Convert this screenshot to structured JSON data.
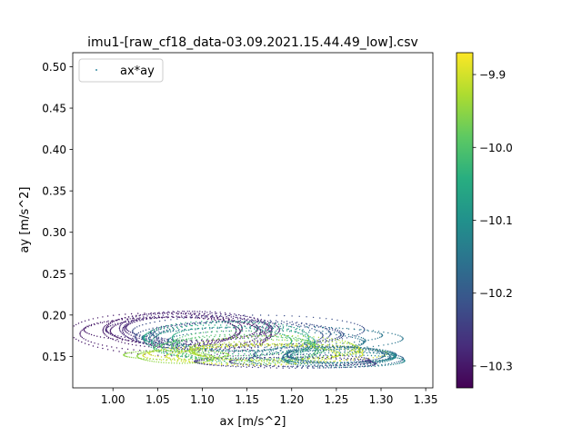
{
  "chart_data": {
    "type": "scatter",
    "title": "imu1-[raw_cf18_data-03.09.2021.15.44.49_low].csv",
    "xlabel": "ax [m/s^2]",
    "ylabel": "ay [m/s^2]",
    "xlim": [
      0.955,
      1.358
    ],
    "ylim": [
      0.112,
      0.517
    ],
    "xticks": [
      "1.00",
      "1.05",
      "1.10",
      "1.15",
      "1.20",
      "1.25",
      "1.30",
      "1.35"
    ],
    "yticks": [
      "0.15",
      "0.20",
      "0.25",
      "0.30",
      "0.35",
      "0.40",
      "0.45",
      "0.50"
    ],
    "legend": {
      "label": "ax*ay",
      "placement": "top-left"
    },
    "colorbar": {
      "colormap": "viridis",
      "range": [
        -10.33,
        -9.87
      ],
      "ticks": [
        "−9.9",
        "−10.0",
        "−10.1",
        "−10.2",
        "−10.3"
      ]
    },
    "grid": false,
    "series": [
      {
        "name": "ax*ay",
        "marker_size": "tiny",
        "loops": [
          {
            "cx": 1.07,
            "cy": 0.18,
            "rx": 0.09,
            "ry": 0.02,
            "c": -10.3,
            "n": 6
          },
          {
            "cx": 1.09,
            "cy": 0.183,
            "rx": 0.1,
            "ry": 0.018,
            "c": -10.28,
            "n": 5
          },
          {
            "cx": 1.14,
            "cy": 0.178,
            "rx": 0.11,
            "ry": 0.016,
            "c": -10.22,
            "n": 5
          },
          {
            "cx": 1.17,
            "cy": 0.172,
            "rx": 0.12,
            "ry": 0.014,
            "c": -10.15,
            "n": 4
          },
          {
            "cx": 1.14,
            "cy": 0.168,
            "rx": 0.08,
            "ry": 0.02,
            "c": -10.05,
            "n": 4
          },
          {
            "cx": 1.15,
            "cy": 0.163,
            "rx": 0.09,
            "ry": 0.017,
            "c": -10.0,
            "n": 4
          },
          {
            "cx": 1.18,
            "cy": 0.158,
            "rx": 0.1,
            "ry": 0.012,
            "c": -9.93,
            "n": 4
          },
          {
            "cx": 1.16,
            "cy": 0.152,
            "rx": 0.11,
            "ry": 0.01,
            "c": -9.9,
            "n": 4
          },
          {
            "cx": 1.24,
            "cy": 0.15,
            "rx": 0.07,
            "ry": 0.01,
            "c": -10.18,
            "n": 4
          },
          {
            "cx": 1.26,
            "cy": 0.148,
            "rx": 0.07,
            "ry": 0.009,
            "c": -10.12,
            "n": 4
          },
          {
            "cx": 1.2,
            "cy": 0.143,
            "rx": 0.1,
            "ry": 0.007,
            "c": -10.25,
            "n": 3
          },
          {
            "cx": 1.08,
            "cy": 0.15,
            "rx": 0.05,
            "ry": 0.008,
            "c": -9.95,
            "n": 2
          }
        ]
      }
    ]
  }
}
